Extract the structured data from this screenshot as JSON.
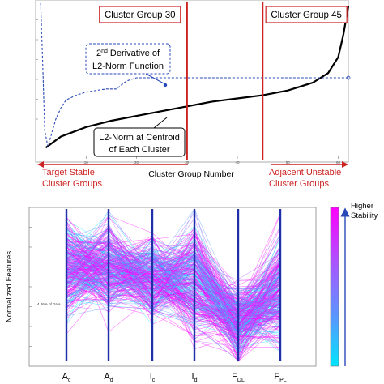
{
  "chart_data": [
    {
      "type": "line",
      "xlabel": "Cluster Group Number",
      "x_ticks": [
        "10",
        "20",
        "30",
        "40",
        "50",
        "60"
      ],
      "xlim": [
        0,
        62
      ],
      "ylim": [
        0,
        1
      ],
      "grid": false,
      "series": [
        {
          "name_line1": "L2-Norm at Centroid",
          "name_line2": "of Each Cluster",
          "color": "#000000",
          "x": [
            2,
            5,
            10,
            15,
            20,
            25,
            30,
            35,
            40,
            45,
            50,
            55,
            58,
            60,
            61,
            62
          ],
          "y": [
            0.07,
            0.14,
            0.2,
            0.24,
            0.27,
            0.3,
            0.33,
            0.36,
            0.38,
            0.4,
            0.43,
            0.48,
            0.54,
            0.64,
            0.78,
            0.96
          ]
        },
        {
          "name_line1": "2nd Derivative of",
          "name_line2": "L2-Norm Function",
          "color": "#2a49b8",
          "x": [
            1,
            1.4,
            1.8,
            2.4,
            3,
            4,
            5,
            6,
            8,
            10,
            12,
            14,
            16,
            18,
            20,
            22,
            25,
            30,
            40,
            50,
            60,
            62
          ],
          "y": [
            0.98,
            0.6,
            0.18,
            0.08,
            0.14,
            0.25,
            0.32,
            0.37,
            0.4,
            0.42,
            0.43,
            0.44,
            0.44,
            0.49,
            0.51,
            0.51,
            0.51,
            0.51,
            0.51,
            0.51,
            0.51,
            0.51
          ]
        }
      ],
      "markers": [
        {
          "x": 30,
          "label": "Cluster Group 30",
          "color": "#cc2222"
        },
        {
          "x": 45,
          "label": "Cluster Group 45",
          "color": "#cc2222"
        }
      ],
      "annotations": {
        "left_line1": "Target Stable",
        "left_line2": "Cluster Groups",
        "right_line1": "Adjacent Unstable",
        "right_line2": "Cluster Groups"
      }
    },
    {
      "type": "parallel_coordinates",
      "ylabel": "Normalized Features",
      "axes": [
        {
          "label": "A",
          "sub": "c"
        },
        {
          "label": "A",
          "sub": "d"
        },
        {
          "label": "I",
          "sub": "c"
        },
        {
          "label": "I",
          "sub": "d"
        },
        {
          "label": "F",
          "sub": "DL"
        },
        {
          "label": "F",
          "sub": "PL"
        }
      ],
      "feature_centers": [
        0.62,
        0.62,
        0.55,
        0.52,
        0.25,
        0.46
      ],
      "feature_spreads": [
        0.25,
        0.25,
        0.22,
        0.3,
        0.2,
        0.3
      ],
      "data_note": "4.26% of Data",
      "colorbar": {
        "label_line1": "Higher",
        "label_line2": "Stability",
        "colors": [
          "#ff00ff",
          "#aa55ff",
          "#5599ff",
          "#00e5ff"
        ]
      }
    }
  ]
}
